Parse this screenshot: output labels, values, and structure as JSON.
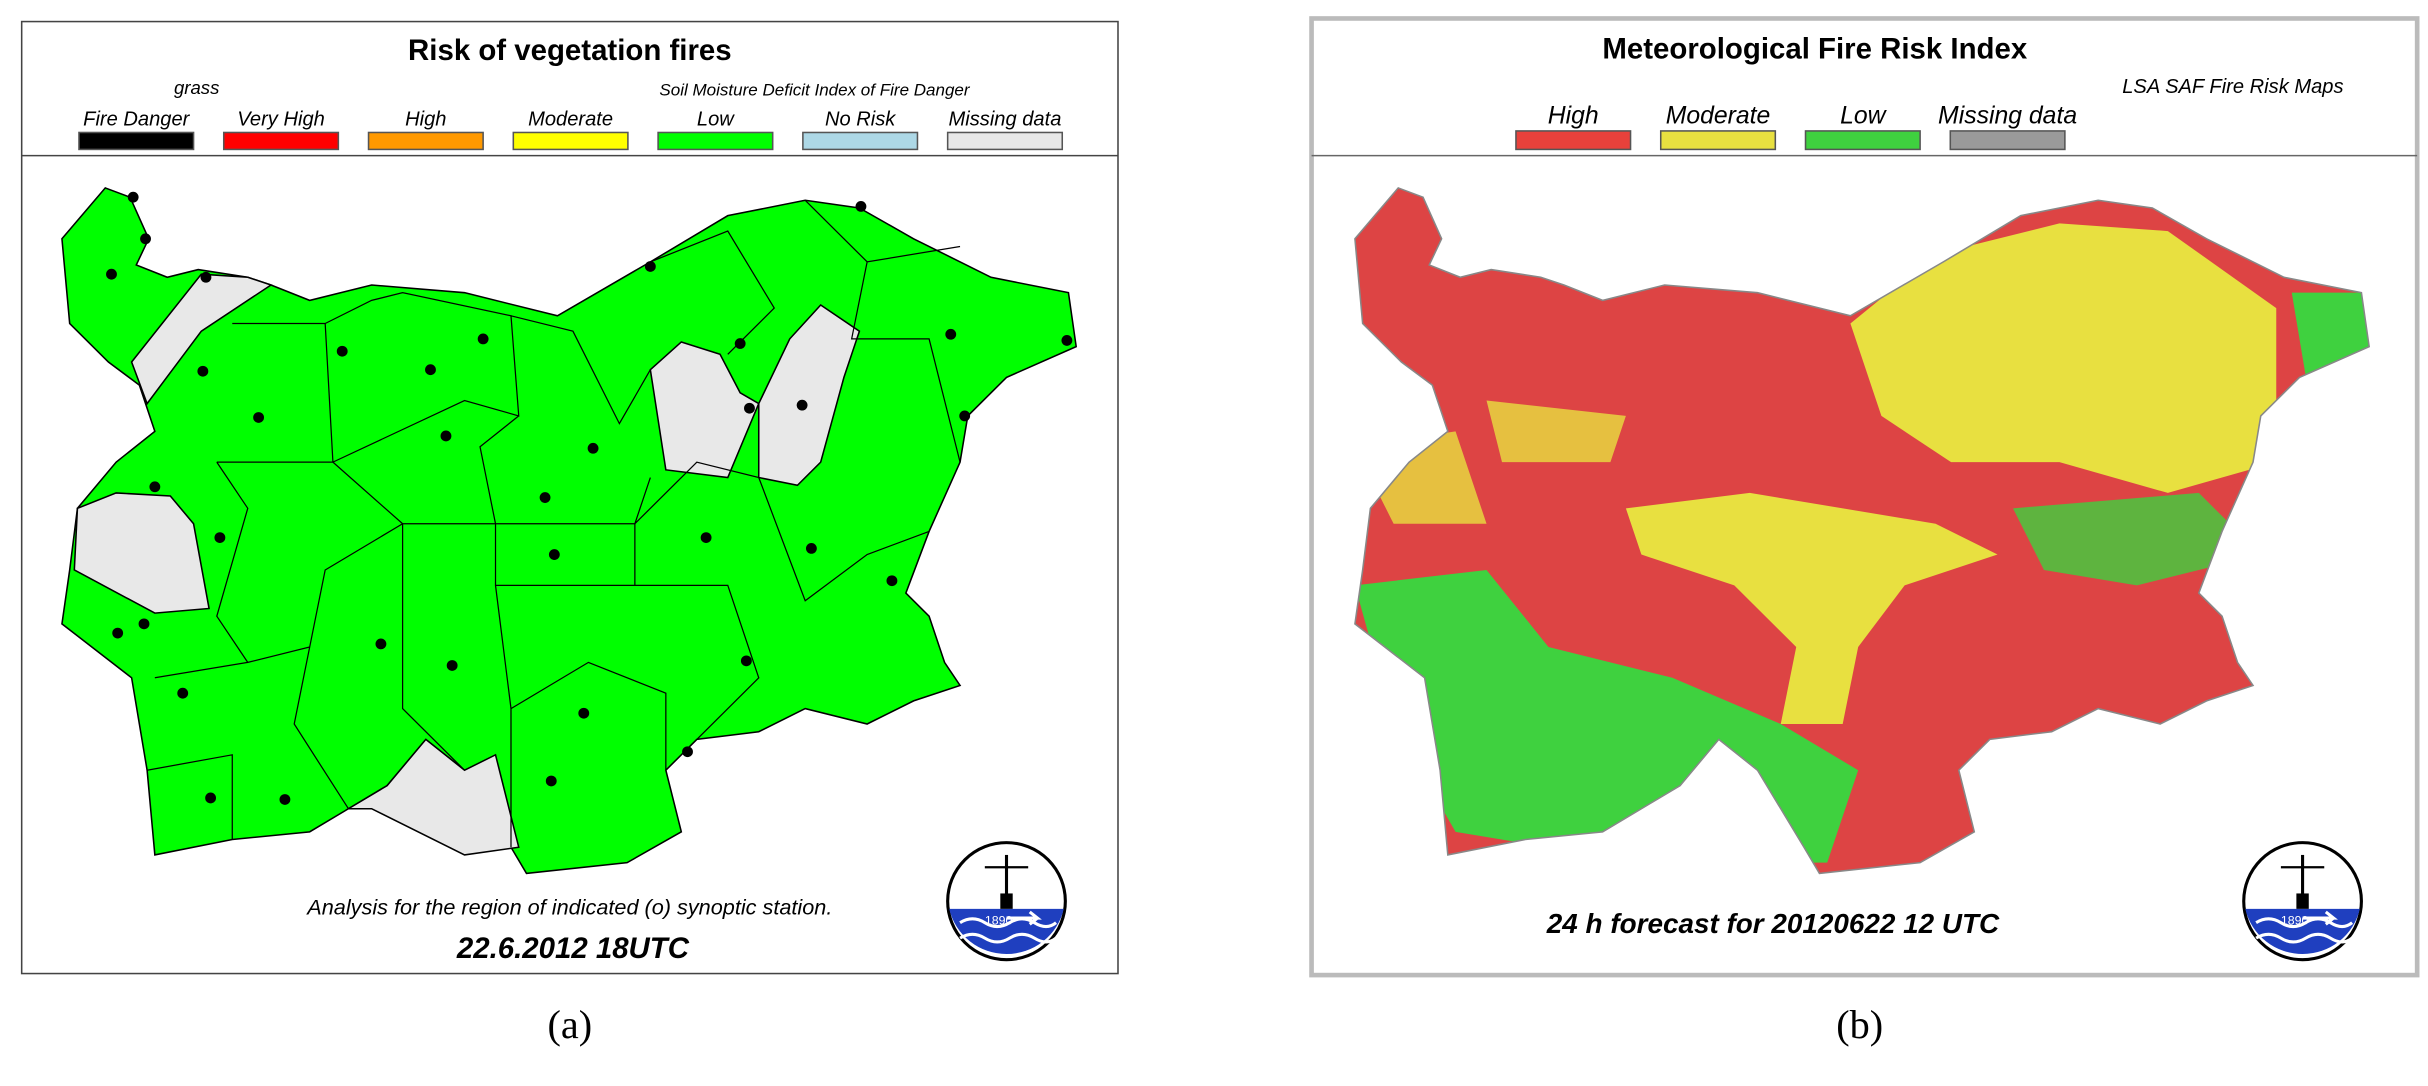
{
  "panels": [
    {
      "title": "Risk of vegetation fires",
      "legend_note_left": "grass",
      "legend_note_right": "Soil Moisture Deficit Index of Fire Danger",
      "legend": [
        {
          "label": "Fire Danger",
          "color": "#000000"
        },
        {
          "label": "Very High",
          "color": "#ff0000"
        },
        {
          "label": "High",
          "color": "#ff9900"
        },
        {
          "label": "Moderate",
          "color": "#ffff00"
        },
        {
          "label": "Low",
          "color": "#00ff00"
        },
        {
          "label": "No Risk",
          "color": "#add8e6"
        },
        {
          "label": "Missing data",
          "color": "#e8e8e8"
        }
      ],
      "caption": "Analysis for the region of indicated (o) synoptic station.",
      "date": "22.6.2012  18UTC",
      "logo_text": "1890",
      "panel_label": "(a)"
    },
    {
      "title": "Meteorological Fire Risk Index",
      "legend_note_right": "LSA SAF Fire Risk Maps",
      "legend": [
        {
          "label": "High",
          "color": "#e8413b"
        },
        {
          "label": "Moderate",
          "color": "#e8e040"
        },
        {
          "label": "Low",
          "color": "#3fd13f"
        },
        {
          "label": "Missing data",
          "color": "#9a9a9a"
        }
      ],
      "date": "24 h  forecast for  20120622  12 UTC",
      "logo_text": "1890",
      "panel_label": "(b)"
    }
  ]
}
